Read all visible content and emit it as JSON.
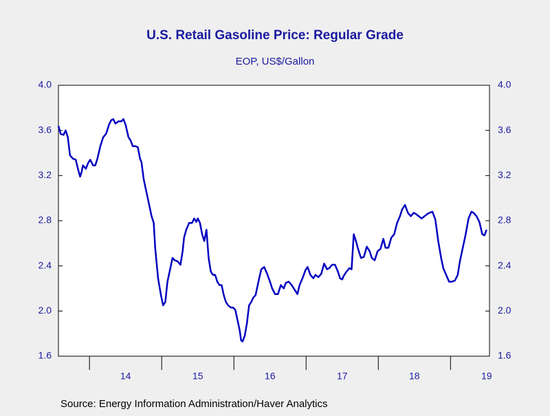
{
  "chart_data": {
    "type": "line",
    "title": "U.S. Retail Gasoline Price: Regular Grade",
    "subtitle": "EOP, US$/Gallon",
    "source": "Source:  Energy Information Administration/Haver Analytics",
    "color": "#0000c0",
    "xlim": [
      2013.57,
      2019.54
    ],
    "xticks": [
      {
        "value": 2014,
        "label": "14"
      },
      {
        "value": 2015,
        "label": "15"
      },
      {
        "value": 2016,
        "label": "16"
      },
      {
        "value": 2017,
        "label": "17"
      },
      {
        "value": 2018,
        "label": "18"
      },
      {
        "value": 2019,
        "label": "19"
      }
    ],
    "ylim": [
      1.6,
      4.0
    ],
    "yticks": [
      1.6,
      {
        "value": 2,
        "label": "2.0"
      },
      2.4,
      2.8,
      3.2,
      3.6,
      {
        "value": 4,
        "label": "4.0"
      }
    ],
    "y2lim": [
      1.6,
      4.0
    ],
    "y2ticks": [
      1.6,
      {
        "value": 2,
        "label": "2.0"
      },
      2.4,
      2.8,
      3.2,
      3.6,
      {
        "value": 4,
        "label": "4.0"
      }
    ],
    "x": [
      2013.57,
      2013.6,
      2013.64,
      2013.67,
      2013.7,
      2013.73,
      2013.77,
      2013.81,
      2013.84,
      2013.87,
      2013.89,
      2013.91,
      2013.95,
      2013.98,
      2014.01,
      2014.05,
      2014.08,
      2014.11,
      2014.15,
      2014.19,
      2014.23,
      2014.27,
      2014.3,
      2014.33,
      2014.36,
      2014.4,
      2014.44,
      2014.47,
      2014.5,
      2014.54,
      2014.57,
      2014.6,
      2014.64,
      2014.67,
      2014.7,
      2014.72,
      2014.75,
      2014.79,
      2014.83,
      2014.86,
      2014.89,
      2014.91,
      2014.95,
      2014.99,
      2015.02,
      2015.05,
      2015.08,
      2015.11,
      2015.15,
      2015.18,
      2015.22,
      2015.26,
      2015.29,
      2015.31,
      2015.34,
      2015.38,
      2015.42,
      2015.45,
      2015.48,
      2015.5,
      2015.53,
      2015.56,
      2015.59,
      2015.62,
      2015.65,
      2015.68,
      2015.71,
      2015.74,
      2015.77,
      2015.8,
      2015.83,
      2015.86,
      2015.89,
      2015.92,
      2015.96,
      2015.99,
      2016.02,
      2016.05,
      2016.08,
      2016.1,
      2016.12,
      2016.15,
      2016.18,
      2016.21,
      2016.24,
      2016.27,
      2016.3,
      2016.33,
      2016.35,
      2016.38,
      2016.42,
      2016.46,
      2016.5,
      2016.53,
      2016.57,
      2016.61,
      2016.65,
      2016.69,
      2016.72,
      2016.76,
      2016.8,
      2016.84,
      2016.88,
      2016.91,
      2016.95,
      2016.99,
      2017.02,
      2017.06,
      2017.1,
      2017.13,
      2017.17,
      2017.21,
      2017.25,
      2017.29,
      2017.32,
      2017.36,
      2017.4,
      2017.44,
      2017.47,
      2017.5,
      2017.52,
      2017.56,
      2017.6,
      2017.63,
      2017.66,
      2017.69,
      2017.72,
      2017.76,
      2017.8,
      2017.84,
      2017.88,
      2017.91,
      2017.95,
      2017.99,
      2018.03,
      2018.07,
      2018.1,
      2018.14,
      2018.18,
      2018.22,
      2018.26,
      2018.3,
      2018.33,
      2018.37,
      2018.41,
      2018.45,
      2018.49,
      2018.52,
      2018.56,
      2018.6,
      2018.64,
      2018.68,
      2018.71,
      2018.75,
      2018.79,
      2018.83,
      2018.87,
      2018.9,
      2018.94,
      2018.98,
      2019.02,
      2019.06,
      2019.1,
      2019.13,
      2019.17,
      2019.21,
      2019.25,
      2019.29,
      2019.32,
      2019.36,
      2019.4,
      2019.44,
      2019.47,
      2019.5
    ],
    "values": [
      3.64,
      3.57,
      3.56,
      3.6,
      3.54,
      3.38,
      3.35,
      3.34,
      3.26,
      3.19,
      3.23,
      3.29,
      3.26,
      3.31,
      3.34,
      3.29,
      3.29,
      3.35,
      3.46,
      3.54,
      3.57,
      3.65,
      3.69,
      3.7,
      3.66,
      3.68,
      3.68,
      3.7,
      3.65,
      3.54,
      3.51,
      3.46,
      3.46,
      3.45,
      3.35,
      3.32,
      3.17,
      3.05,
      2.93,
      2.84,
      2.78,
      2.56,
      2.29,
      2.14,
      2.05,
      2.08,
      2.26,
      2.35,
      2.47,
      2.45,
      2.44,
      2.41,
      2.53,
      2.65,
      2.72,
      2.78,
      2.78,
      2.82,
      2.79,
      2.82,
      2.78,
      2.68,
      2.62,
      2.72,
      2.47,
      2.35,
      2.32,
      2.32,
      2.26,
      2.23,
      2.23,
      2.14,
      2.08,
      2.05,
      2.03,
      2.03,
      2.01,
      1.92,
      1.83,
      1.74,
      1.73,
      1.78,
      1.89,
      2.05,
      2.08,
      2.12,
      2.14,
      2.23,
      2.29,
      2.37,
      2.39,
      2.33,
      2.26,
      2.2,
      2.15,
      2.15,
      2.23,
      2.2,
      2.25,
      2.26,
      2.23,
      2.19,
      2.15,
      2.23,
      2.29,
      2.36,
      2.39,
      2.32,
      2.29,
      2.32,
      2.3,
      2.33,
      2.42,
      2.37,
      2.38,
      2.41,
      2.41,
      2.35,
      2.29,
      2.28,
      2.31,
      2.35,
      2.38,
      2.37,
      2.68,
      2.62,
      2.55,
      2.47,
      2.48,
      2.57,
      2.53,
      2.47,
      2.45,
      2.53,
      2.55,
      2.64,
      2.56,
      2.56,
      2.65,
      2.68,
      2.78,
      2.84,
      2.9,
      2.94,
      2.87,
      2.84,
      2.87,
      2.86,
      2.84,
      2.82,
      2.84,
      2.86,
      2.87,
      2.88,
      2.81,
      2.62,
      2.47,
      2.38,
      2.32,
      2.26,
      2.26,
      2.27,
      2.32,
      2.44,
      2.56,
      2.68,
      2.82,
      2.88,
      2.87,
      2.84,
      2.79,
      2.68,
      2.67,
      2.72
    ]
  }
}
